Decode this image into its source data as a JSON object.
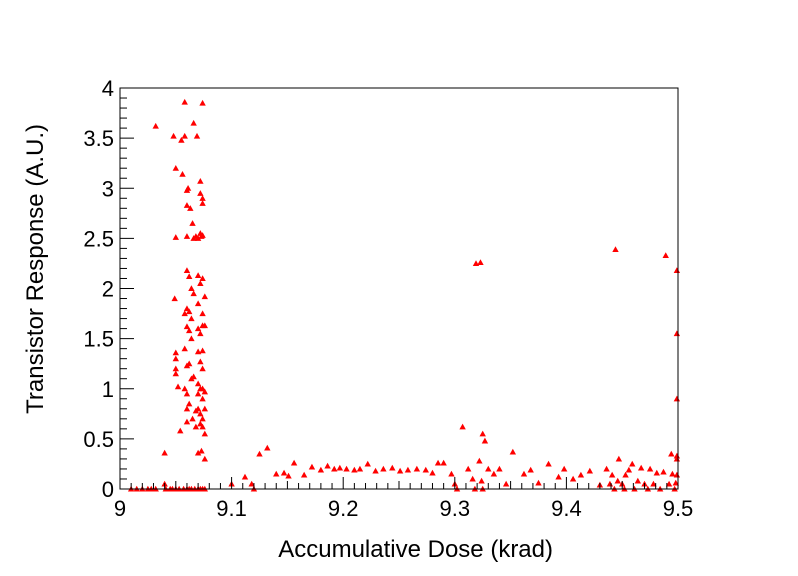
{
  "chart_data": {
    "type": "scatter",
    "title": "",
    "xlabel": "Accumulative Dose (krad)",
    "ylabel": "Transistor Response (A.U.)",
    "xlim": [
      9.0,
      9.5
    ],
    "ylim": [
      0,
      4
    ],
    "xticks": [
      "9",
      "9.1",
      "9.2",
      "9.3",
      "9.4",
      "9.5"
    ],
    "yticks": [
      "0",
      "0.5",
      "1",
      "1.5",
      "2",
      "2.5",
      "3",
      "3.5",
      "4"
    ],
    "grid": false,
    "legend": "none",
    "marker": "triangle",
    "marker_color": "#ff0000",
    "series": [
      {
        "points": [
          [
            9.01,
            0
          ],
          [
            9.015,
            0
          ],
          [
            9.02,
            0
          ],
          [
            9.025,
            0
          ],
          [
            9.028,
            0
          ],
          [
            9.032,
            0
          ],
          [
            9.041,
            0
          ],
          [
            9.045,
            0
          ],
          [
            9.047,
            0
          ],
          [
            9.05,
            0
          ],
          [
            9.053,
            0
          ],
          [
            9.057,
            0
          ],
          [
            9.06,
            0
          ],
          [
            9.062,
            0
          ],
          [
            9.064,
            0
          ],
          [
            9.067,
            0
          ],
          [
            9.07,
            0
          ],
          [
            9.072,
            0
          ],
          [
            9.074,
            0
          ],
          [
            9.076,
            0
          ],
          [
            9.032,
            3.62
          ],
          [
            9.04,
            0.36
          ],
          [
            9.04,
            0.05
          ],
          [
            9.048,
            3.52
          ],
          [
            9.05,
            3.2
          ],
          [
            9.05,
            2.51
          ],
          [
            9.049,
            1.9
          ],
          [
            9.05,
            1.36
          ],
          [
            9.05,
            1.3
          ],
          [
            9.05,
            1.2
          ],
          [
            9.05,
            1.15
          ],
          [
            9.052,
            1.02
          ],
          [
            9.054,
            0.58
          ],
          [
            9.055,
            3.48
          ],
          [
            9.056,
            3.14
          ],
          [
            9.058,
            3.86
          ],
          [
            9.058,
            3.52
          ],
          [
            9.058,
            1.75
          ],
          [
            9.058,
            1.4
          ],
          [
            9.058,
            1.0
          ],
          [
            9.06,
            2.98
          ],
          [
            9.06,
            2.83
          ],
          [
            9.06,
            2.52
          ],
          [
            9.06,
            2.18
          ],
          [
            9.06,
            1.8
          ],
          [
            9.06,
            1.62
          ],
          [
            9.06,
            1.23
          ],
          [
            9.06,
            0.95
          ],
          [
            9.06,
            0.8
          ],
          [
            9.06,
            0.67
          ],
          [
            9.061,
            3.0
          ],
          [
            9.062,
            2.12
          ],
          [
            9.062,
            1.77
          ],
          [
            9.062,
            1.58
          ],
          [
            9.062,
            1.25
          ],
          [
            9.062,
            0.85
          ],
          [
            9.063,
            2.8
          ],
          [
            9.064,
            2.0
          ],
          [
            9.064,
            1.7
          ],
          [
            9.064,
            1.5
          ],
          [
            9.064,
            1.1
          ],
          [
            9.065,
            2.65
          ],
          [
            9.065,
            0.7
          ],
          [
            9.066,
            3.65
          ],
          [
            9.066,
            2.5
          ],
          [
            9.066,
            1.95
          ],
          [
            9.066,
            1.12
          ],
          [
            9.068,
            2.52
          ],
          [
            9.068,
            0.78
          ],
          [
            9.068,
            0.62
          ],
          [
            9.069,
            3.52
          ],
          [
            9.07,
            2.5
          ],
          [
            9.07,
            2.13
          ],
          [
            9.07,
            1.85
          ],
          [
            9.07,
            1.6
          ],
          [
            9.07,
            1.37
          ],
          [
            9.07,
            1.05
          ],
          [
            9.07,
            0.95
          ],
          [
            9.07,
            0.8
          ],
          [
            9.07,
            0.36
          ],
          [
            9.072,
            3.07
          ],
          [
            9.072,
            2.95
          ],
          [
            9.072,
            2.55
          ],
          [
            9.072,
            2.05
          ],
          [
            9.072,
            1.55
          ],
          [
            9.072,
            1.27
          ],
          [
            9.072,
            1.0
          ],
          [
            9.072,
            0.75
          ],
          [
            9.072,
            0.65
          ],
          [
            9.073,
            2.52
          ],
          [
            9.073,
            0.38
          ],
          [
            9.074,
            3.85
          ],
          [
            9.074,
            2.9
          ],
          [
            9.074,
            2.85
          ],
          [
            9.074,
            2.53
          ],
          [
            9.074,
            2.1
          ],
          [
            9.074,
            1.75
          ],
          [
            9.074,
            1.63
          ],
          [
            9.074,
            1.38
          ],
          [
            9.074,
            1.2
          ],
          [
            9.074,
            1.0
          ],
          [
            9.074,
            0.9
          ],
          [
            9.074,
            0.7
          ],
          [
            9.074,
            0.62
          ],
          [
            9.076,
            1.92
          ],
          [
            9.076,
            1.63
          ],
          [
            9.076,
            0.97
          ],
          [
            9.076,
            0.8
          ],
          [
            9.076,
            0.55
          ],
          [
            9.076,
            0.3
          ],
          [
            9.1,
            0.05
          ],
          [
            9.112,
            0.12
          ],
          [
            9.118,
            0.05
          ],
          [
            9.12,
            0
          ],
          [
            9.125,
            0.35
          ],
          [
            9.132,
            0.41
          ],
          [
            9.14,
            0.15
          ],
          [
            9.147,
            0.16
          ],
          [
            9.151,
            0.13
          ],
          [
            9.156,
            0.26
          ],
          [
            9.165,
            0.14
          ],
          [
            9.172,
            0.22
          ],
          [
            9.18,
            0.19
          ],
          [
            9.186,
            0.23
          ],
          [
            9.192,
            0.2
          ],
          [
            9.197,
            0.21
          ],
          [
            9.203,
            0.2
          ],
          [
            9.21,
            0.19
          ],
          [
            9.215,
            0.2
          ],
          [
            9.222,
            0.25
          ],
          [
            9.229,
            0.18
          ],
          [
            9.236,
            0.2
          ],
          [
            9.244,
            0.21
          ],
          [
            9.251,
            0.18
          ],
          [
            9.258,
            0.19
          ],
          [
            9.266,
            0.2
          ],
          [
            9.274,
            0.19
          ],
          [
            9.28,
            0.16
          ],
          [
            9.285,
            0.26
          ],
          [
            9.29,
            0.26
          ],
          [
            9.297,
            0.15
          ],
          [
            9.3,
            0.05
          ],
          [
            9.302,
            0
          ],
          [
            9.307,
            0.62
          ],
          [
            9.312,
            0.2
          ],
          [
            9.316,
            0.1
          ],
          [
            9.318,
            0
          ],
          [
            9.319,
            2.25
          ],
          [
            9.322,
            0.28
          ],
          [
            9.323,
            2.26
          ],
          [
            9.324,
            0.08
          ],
          [
            9.325,
            0
          ],
          [
            9.325,
            0.55
          ],
          [
            9.327,
            0.48
          ],
          [
            9.33,
            0.2
          ],
          [
            9.335,
            0.15
          ],
          [
            9.34,
            0.2
          ],
          [
            9.346,
            0.05
          ],
          [
            9.352,
            0.37
          ],
          [
            9.362,
            0.15
          ],
          [
            9.368,
            0.19
          ],
          [
            9.375,
            0.06
          ],
          [
            9.384,
            0.25
          ],
          [
            9.393,
            0.12
          ],
          [
            9.398,
            0.2
          ],
          [
            9.406,
            0.1
          ],
          [
            9.413,
            0.14
          ],
          [
            9.421,
            0.18
          ],
          [
            9.43,
            0.04
          ],
          [
            9.436,
            0.2
          ],
          [
            9.439,
            0.05
          ],
          [
            9.441,
            0.14
          ],
          [
            9.443,
            0
          ],
          [
            9.444,
            2.39
          ],
          [
            9.446,
            0.08
          ],
          [
            9.447,
            0.3
          ],
          [
            9.45,
            0.05
          ],
          [
            9.452,
            0
          ],
          [
            9.453,
            0.14
          ],
          [
            9.456,
            0.19
          ],
          [
            9.459,
            0.25
          ],
          [
            9.461,
            0
          ],
          [
            9.464,
            0.08
          ],
          [
            9.467,
            0.21
          ],
          [
            9.47,
            0.05
          ],
          [
            9.473,
            0
          ],
          [
            9.475,
            0.2
          ],
          [
            9.478,
            0.05
          ],
          [
            9.481,
            0.16
          ],
          [
            9.484,
            0
          ],
          [
            9.487,
            0.17
          ],
          [
            9.489,
            2.33
          ],
          [
            9.492,
            0.05
          ],
          [
            9.494,
            0.35
          ],
          [
            9.495,
            0.15
          ],
          [
            9.497,
            0
          ],
          [
            9.498,
            0.06
          ],
          [
            9.499,
            2.18
          ],
          [
            9.499,
            1.55
          ],
          [
            9.499,
            0.9
          ],
          [
            9.499,
            0.33
          ],
          [
            9.499,
            0.3
          ],
          [
            9.499,
            0.14
          ]
        ]
      }
    ]
  }
}
